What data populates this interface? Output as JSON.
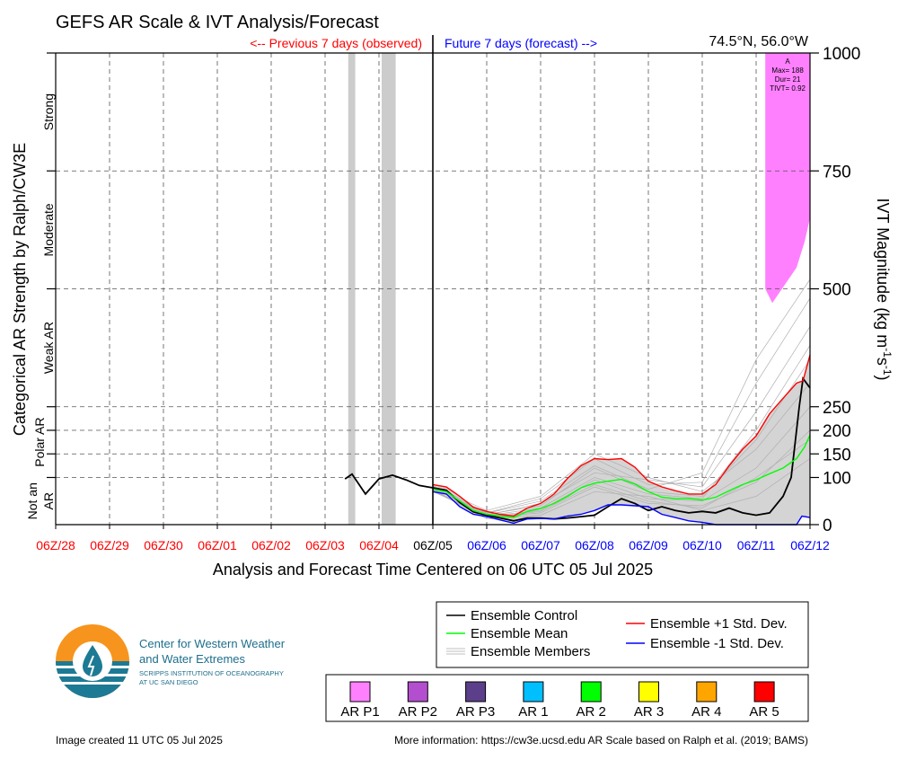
{
  "chart_data": {
    "type": "line",
    "title": "GEFS AR Scale & IVT Analysis/Forecast",
    "location": "74.5°N, 56.0°W",
    "observed_label": "<-- Previous 7 days (observed)",
    "forecast_label": "Future 7 days (forecast) -->",
    "xlabel": "Analysis and Forecast Time Centered on 06 UTC 05 Jul 2025",
    "ylabel_left": "Categorical AR Strength by Ralph/CW3E",
    "ylabel_right": "IVT Magnitude (kg m",
    "ylabel_right_sup1": "-1",
    "ylabel_right_mid": "s",
    "ylabel_right_sup2": "-1",
    "ylabel_right_end": ")",
    "x_ticks": [
      {
        "label": "06Z/28",
        "day": -7,
        "color": "#ff0000"
      },
      {
        "label": "06Z/29",
        "day": -6,
        "color": "#ff0000"
      },
      {
        "label": "06Z/30",
        "day": -5,
        "color": "#ff0000"
      },
      {
        "label": "06Z/01",
        "day": -4,
        "color": "#ff0000"
      },
      {
        "label": "06Z/02",
        "day": -3,
        "color": "#ff0000"
      },
      {
        "label": "06Z/03",
        "day": -2,
        "color": "#ff0000"
      },
      {
        "label": "06Z/04",
        "day": -1,
        "color": "#ff0000"
      },
      {
        "label": "06Z/05",
        "day": 0,
        "color": "#000000"
      },
      {
        "label": "06Z/06",
        "day": 1,
        "color": "#0000ff"
      },
      {
        "label": "06Z/07",
        "day": 2,
        "color": "#0000ff"
      },
      {
        "label": "06Z/08",
        "day": 3,
        "color": "#0000ff"
      },
      {
        "label": "06Z/09",
        "day": 4,
        "color": "#0000ff"
      },
      {
        "label": "06Z/10",
        "day": 5,
        "color": "#0000ff"
      },
      {
        "label": "06Z/11",
        "day": 6,
        "color": "#0000ff"
      },
      {
        "label": "06Z/12",
        "day": 7,
        "color": "#0000ff"
      }
    ],
    "xlim": [
      -7,
      7
    ],
    "y_ticks": [
      0,
      100,
      150,
      200,
      250,
      500,
      750,
      1000
    ],
    "ylim": [
      0,
      1000
    ],
    "categories": [
      {
        "label": "Not an AR",
        "lines": [
          "Not an",
          "AR"
        ],
        "from": 0,
        "to": 100
      },
      {
        "label": "Polar AR",
        "lines": [
          "Polar AR"
        ],
        "from": 100,
        "to": 250
      },
      {
        "label": "Weak AR",
        "lines": [
          "Weak AR"
        ],
        "from": 250,
        "to": 500
      },
      {
        "label": "Moderate",
        "lines": [
          "Moderate"
        ],
        "from": 500,
        "to": 750
      },
      {
        "label": "Strong",
        "lines": [
          "Strong"
        ],
        "from": 750,
        "to": 1000
      }
    ],
    "observed_bars": [
      {
        "start": -1.57,
        "end": -1.44
      },
      {
        "start": -0.95,
        "end": -0.69
      }
    ],
    "ar_event": {
      "category": "AR P1",
      "color": "#ff80ff",
      "start": 6.17,
      "end": 7.0,
      "label_lines": [
        "A",
        "Max= 188",
        "Dur= 21",
        "TIVT= 0.92"
      ],
      "lower_edge": [
        [
          6.17,
          500
        ],
        [
          6.3,
          470
        ],
        [
          6.45,
          495
        ],
        [
          6.6,
          520
        ],
        [
          6.75,
          545
        ],
        [
          6.9,
          600
        ],
        [
          7.0,
          650
        ]
      ]
    },
    "series": [
      {
        "name": "Ensemble Control",
        "color": "#000000",
        "points": [
          [
            -1.63,
            97
          ],
          [
            -1.5,
            107
          ],
          [
            -1.25,
            65
          ],
          [
            -1.0,
            97
          ],
          [
            -0.75,
            105
          ],
          [
            -0.5,
            95
          ],
          [
            -0.25,
            83
          ],
          [
            0,
            78
          ],
          [
            0.25,
            73
          ],
          [
            0.5,
            47
          ],
          [
            0.75,
            27
          ],
          [
            1.0,
            20
          ],
          [
            1.25,
            14
          ],
          [
            1.5,
            8
          ],
          [
            1.75,
            14
          ],
          [
            2.0,
            14
          ],
          [
            2.25,
            12
          ],
          [
            2.5,
            14
          ],
          [
            2.75,
            17
          ],
          [
            3.0,
            20
          ],
          [
            3.25,
            38
          ],
          [
            3.5,
            55
          ],
          [
            3.75,
            45
          ],
          [
            4.0,
            30
          ],
          [
            4.25,
            38
          ],
          [
            4.5,
            30
          ],
          [
            4.75,
            25
          ],
          [
            5.0,
            28
          ],
          [
            5.25,
            25
          ],
          [
            5.5,
            35
          ],
          [
            5.75,
            25
          ],
          [
            6.0,
            20
          ],
          [
            6.25,
            25
          ],
          [
            6.5,
            60
          ],
          [
            6.65,
            100
          ],
          [
            6.8,
            250
          ],
          [
            6.87,
            310
          ],
          [
            7.0,
            290
          ]
        ]
      },
      {
        "name": "Ensemble Mean",
        "color": "#00ff00",
        "points": [
          [
            0,
            75
          ],
          [
            0.25,
            70
          ],
          [
            0.5,
            50
          ],
          [
            0.75,
            30
          ],
          [
            1.0,
            22
          ],
          [
            1.25,
            18
          ],
          [
            1.5,
            15
          ],
          [
            1.75,
            28
          ],
          [
            2.0,
            34
          ],
          [
            2.25,
            45
          ],
          [
            2.5,
            60
          ],
          [
            2.75,
            78
          ],
          [
            3.0,
            88
          ],
          [
            3.25,
            92
          ],
          [
            3.5,
            96
          ],
          [
            3.75,
            86
          ],
          [
            4.0,
            70
          ],
          [
            4.25,
            58
          ],
          [
            4.5,
            55
          ],
          [
            4.75,
            55
          ],
          [
            5.0,
            52
          ],
          [
            5.25,
            58
          ],
          [
            5.5,
            72
          ],
          [
            5.75,
            85
          ],
          [
            6.0,
            95
          ],
          [
            6.25,
            108
          ],
          [
            6.5,
            120
          ],
          [
            6.75,
            140
          ],
          [
            6.9,
            165
          ],
          [
            7.0,
            190
          ]
        ]
      },
      {
        "name": "Ensemble +1 Std. Dev.",
        "color": "#ff0000",
        "points": [
          [
            0,
            85
          ],
          [
            0.25,
            80
          ],
          [
            0.5,
            60
          ],
          [
            0.75,
            37
          ],
          [
            1.0,
            28
          ],
          [
            1.25,
            22
          ],
          [
            1.5,
            18
          ],
          [
            1.75,
            35
          ],
          [
            2.0,
            45
          ],
          [
            2.25,
            65
          ],
          [
            2.5,
            98
          ],
          [
            2.75,
            125
          ],
          [
            3.0,
            140
          ],
          [
            3.25,
            138
          ],
          [
            3.5,
            140
          ],
          [
            3.75,
            122
          ],
          [
            4.0,
            92
          ],
          [
            4.25,
            80
          ],
          [
            4.5,
            72
          ],
          [
            4.75,
            65
          ],
          [
            5.0,
            65
          ],
          [
            5.25,
            85
          ],
          [
            5.5,
            125
          ],
          [
            5.75,
            160
          ],
          [
            6.0,
            188
          ],
          [
            6.25,
            235
          ],
          [
            6.5,
            268
          ],
          [
            6.75,
            300
          ],
          [
            6.87,
            305
          ],
          [
            7.0,
            360
          ]
        ]
      },
      {
        "name": "Ensemble -1 Std. Dev.",
        "color": "#0000ff",
        "points": [
          [
            0,
            70
          ],
          [
            0.25,
            65
          ],
          [
            0.5,
            38
          ],
          [
            0.75,
            22
          ],
          [
            1.0,
            17
          ],
          [
            1.25,
            10
          ],
          [
            1.5,
            3
          ],
          [
            1.75,
            12
          ],
          [
            2.0,
            13
          ],
          [
            2.25,
            12
          ],
          [
            2.5,
            18
          ],
          [
            2.75,
            22
          ],
          [
            3.0,
            30
          ],
          [
            3.25,
            42
          ],
          [
            3.5,
            42
          ],
          [
            3.75,
            40
          ],
          [
            4.0,
            38
          ],
          [
            4.25,
            22
          ],
          [
            4.5,
            15
          ],
          [
            4.75,
            8
          ],
          [
            5.0,
            5
          ],
          [
            5.25,
            0
          ],
          [
            5.5,
            0
          ],
          [
            5.75,
            0
          ],
          [
            6.0,
            0
          ],
          [
            6.25,
            0
          ],
          [
            6.5,
            0
          ],
          [
            6.75,
            0
          ],
          [
            6.85,
            18
          ],
          [
            7.0,
            15
          ]
        ]
      }
    ],
    "members_label": "Ensemble Members",
    "members": [
      [
        [
          0,
          78
        ],
        [
          1,
          22
        ],
        [
          2,
          40
        ],
        [
          3,
          120
        ],
        [
          4,
          70
        ],
        [
          5,
          60
        ],
        [
          6,
          180
        ],
        [
          7,
          350
        ]
      ],
      [
        [
          0,
          72
        ],
        [
          1,
          18
        ],
        [
          2,
          30
        ],
        [
          3,
          95
        ],
        [
          4,
          55
        ],
        [
          5,
          50
        ],
        [
          6,
          120
        ],
        [
          7,
          250
        ]
      ],
      [
        [
          0,
          80
        ],
        [
          1,
          25
        ],
        [
          2,
          55
        ],
        [
          3,
          140
        ],
        [
          4,
          85
        ],
        [
          5,
          90
        ],
        [
          6,
          300
        ],
        [
          7,
          480
        ]
      ],
      [
        [
          0,
          75
        ],
        [
          1,
          15
        ],
        [
          2,
          25
        ],
        [
          3,
          80
        ],
        [
          4,
          45
        ],
        [
          5,
          40
        ],
        [
          6,
          90
        ],
        [
          7,
          200
        ]
      ],
      [
        [
          0,
          70
        ],
        [
          1,
          20
        ],
        [
          2,
          45
        ],
        [
          3,
          110
        ],
        [
          4,
          95
        ],
        [
          5,
          80
        ],
        [
          6,
          240
        ],
        [
          7,
          420
        ]
      ],
      [
        [
          0,
          82
        ],
        [
          1,
          30
        ],
        [
          2,
          60
        ],
        [
          3,
          150
        ],
        [
          4,
          100
        ],
        [
          5,
          70
        ],
        [
          6,
          160
        ],
        [
          7,
          300
        ]
      ],
      [
        [
          0,
          74
        ],
        [
          1,
          12
        ],
        [
          2,
          20
        ],
        [
          3,
          70
        ],
        [
          4,
          60
        ],
        [
          5,
          30
        ],
        [
          6,
          60
        ],
        [
          7,
          140
        ]
      ],
      [
        [
          0,
          76
        ],
        [
          1,
          24
        ],
        [
          2,
          50
        ],
        [
          3,
          125
        ],
        [
          4,
          75
        ],
        [
          5,
          110
        ],
        [
          6,
          350
        ],
        [
          7,
          520
        ]
      ],
      [
        [
          0,
          79
        ],
        [
          1,
          19
        ],
        [
          2,
          35
        ],
        [
          3,
          100
        ],
        [
          4,
          65
        ],
        [
          5,
          55
        ],
        [
          6,
          200
        ],
        [
          7,
          380
        ]
      ],
      [
        [
          0,
          71
        ],
        [
          1,
          16
        ],
        [
          2,
          28
        ],
        [
          3,
          85
        ],
        [
          4,
          50
        ],
        [
          5,
          35
        ],
        [
          6,
          100
        ],
        [
          7,
          180
        ]
      ]
    ],
    "legend": {
      "items": [
        {
          "label": "Ensemble Control",
          "color": "#000000"
        },
        {
          "label": "Ensemble Mean",
          "color": "#00ff00"
        },
        {
          "label": "Ensemble Members",
          "color": "#aaaaaa"
        },
        {
          "label": "Ensemble +1 Std. Dev.",
          "color": "#ff0000"
        },
        {
          "label": "Ensemble -1 Std. Dev.",
          "color": "#0000ff"
        }
      ]
    },
    "ar_scale_legend": [
      {
        "label": "AR P1",
        "color": "#ff80ff"
      },
      {
        "label": "AR P2",
        "color": "#b34fce"
      },
      {
        "label": "AR P3",
        "color": "#5c3f8a"
      },
      {
        "label": "AR 1",
        "color": "#00bfff"
      },
      {
        "label": "AR 2",
        "color": "#00ff00"
      },
      {
        "label": "AR 3",
        "color": "#ffff00"
      },
      {
        "label": "AR 4",
        "color": "#ffa500"
      },
      {
        "label": "AR 5",
        "color": "#ff0000"
      }
    ]
  },
  "logo": {
    "line1": "Center for Western Weather",
    "line2": "and Water Extremes",
    "line3": "SCRIPPS INSTITUTION OF OCEANOGRAPHY",
    "line4": "AT UC SAN DIEGO"
  },
  "footer": {
    "created": "Image created 11 UTC 05 Jul 2025",
    "info": "More information: https://cw3e.ucsd.edu AR Scale based on Ralph et al. (2019; BAMS)"
  }
}
